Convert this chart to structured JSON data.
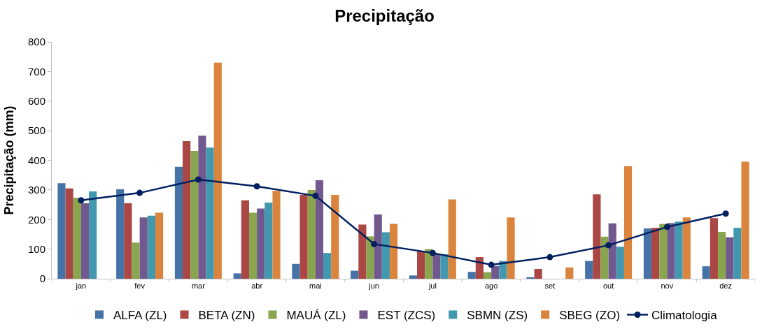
{
  "chart_data": {
    "type": "bar",
    "title": "Precipitação",
    "ylabel": "Precipitação (mm)",
    "categories": [
      "jan",
      "fev",
      "mar",
      "abr",
      "mai",
      "jun",
      "jul",
      "ago",
      "set",
      "out",
      "nov",
      "dez"
    ],
    "series": [
      {
        "name": "ALFA (ZL)",
        "color": "#4572a7",
        "values": [
          323,
          302,
          378,
          18,
          50,
          27,
          11,
          23,
          5,
          60,
          170,
          42
        ]
      },
      {
        "name": "BETA (ZN)",
        "color": "#aa4643",
        "values": [
          305,
          255,
          465,
          265,
          283,
          183,
          92,
          73,
          33,
          285,
          172,
          205
        ]
      },
      {
        "name": "MAUÁ (ZL)",
        "color": "#89a54e",
        "values": [
          273,
          122,
          432,
          223,
          300,
          143,
          100,
          22,
          null,
          142,
          185,
          158
        ]
      },
      {
        "name": "EST (ZCS)",
        "color": "#71588f",
        "values": [
          255,
          207,
          483,
          237,
          333,
          217,
          83,
          43,
          null,
          187,
          188,
          140
        ]
      },
      {
        "name": "SBMN (ZS)",
        "color": "#4198af",
        "values": [
          295,
          213,
          443,
          257,
          87,
          157,
          83,
          60,
          null,
          108,
          193,
          172
        ]
      },
      {
        "name": "SBEG (ZO)",
        "color": "#db843d",
        "values": [
          null,
          223,
          730,
          297,
          283,
          185,
          268,
          207,
          38,
          380,
          207,
          395
        ]
      },
      {
        "name": "Climatologia",
        "type": "line",
        "color": "#002060",
        "marker": "circle",
        "values": [
          265,
          290,
          335,
          312,
          280,
          117,
          87,
          47,
          73,
          113,
          175,
          220
        ]
      }
    ],
    "ylim": [
      0,
      800
    ],
    "yticks": [
      0,
      100,
      200,
      300,
      400,
      500,
      600,
      700,
      800
    ],
    "legend": "bottom"
  }
}
